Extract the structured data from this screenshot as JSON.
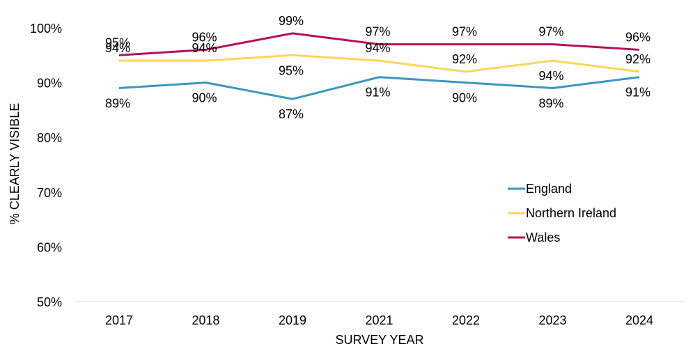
{
  "chart_data": {
    "type": "line",
    "title": "",
    "xlabel": "SURVEY YEAR",
    "ylabel": "% CLEARLY VISIBLE",
    "categories": [
      "2017",
      "2018",
      "2019",
      "2021",
      "2022",
      "2023",
      "2024"
    ],
    "ylim": [
      50,
      100
    ],
    "yticks": [
      50,
      60,
      70,
      80,
      90,
      100
    ],
    "ytick_labels": [
      "50%",
      "60%",
      "70%",
      "80%",
      "90%",
      "100%"
    ],
    "grid": false,
    "legend_position": "right",
    "series": [
      {
        "name": "England",
        "color": "#3b96c2",
        "values": [
          89,
          90,
          87,
          91,
          90,
          89,
          91
        ],
        "labels": [
          "89%",
          "90%",
          "87%",
          "91%",
          "90%",
          "89%",
          "91%"
        ]
      },
      {
        "name": "Northern Ireland",
        "color": "#fcd55a",
        "values": [
          94,
          94,
          95,
          94,
          92,
          94,
          92
        ],
        "labels": [
          "94%",
          "94%",
          "95%",
          "94%",
          "92%",
          "94%",
          "92%"
        ]
      },
      {
        "name": "Wales",
        "color": "#b5105a",
        "values": [
          95,
          96,
          99,
          97,
          97,
          97,
          96
        ],
        "labels": [
          "95%",
          "96%",
          "99%",
          "97%",
          "97%",
          "97%",
          "96%"
        ]
      }
    ]
  }
}
